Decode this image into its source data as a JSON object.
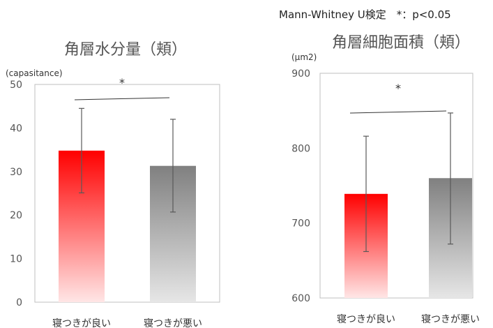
{
  "note": "Mann-Whitney U検定　*：p<0.05",
  "colors": {
    "good_top": "#ff0000",
    "good_bottom": "#ffe6e6",
    "bad_top": "#808080",
    "bad_bottom": "#e6e6e6",
    "axis": "#bfbfbf",
    "error": "#595959"
  },
  "chart_data": [
    {
      "type": "bar",
      "title": "角層水分量（頬）",
      "ylabel": "(capasitance)",
      "categories": [
        "寝つきが良い",
        "寝つきが悪い"
      ],
      "values": [
        34.8,
        31.3
      ],
      "error": [
        [
          25.1,
          44.5
        ],
        [
          20.7,
          42.0
        ]
      ],
      "ylim": [
        0,
        50
      ],
      "yticks": [
        0,
        10,
        20,
        30,
        40,
        50
      ],
      "significance": "*"
    },
    {
      "type": "bar",
      "title": "角層細胞面積（頬）",
      "ylabel": "(μm2)",
      "categories": [
        "寝つきが良い",
        "寝つきが悪い"
      ],
      "values": [
        739,
        760
      ],
      "error": [
        [
          662,
          816
        ],
        [
          672,
          847
        ]
      ],
      "ylim": [
        600,
        900
      ],
      "yticks": [
        600,
        700,
        800,
        900
      ],
      "significance": "*"
    }
  ]
}
